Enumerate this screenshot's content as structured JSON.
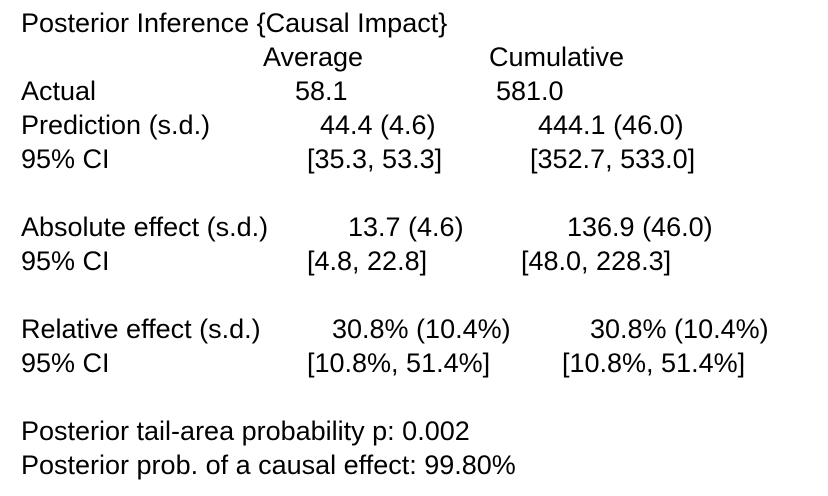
{
  "title": "Posterior Inference {Causal Impact}",
  "headers": {
    "average": "Average",
    "cumulative": "Cumulative"
  },
  "rows": {
    "actual": {
      "label": "Actual",
      "average": "58.1",
      "cumulative": "581.0"
    },
    "prediction": {
      "label": "Prediction (s.d.)",
      "average": "44.4 (4.6)",
      "cumulative": "444.1 (46.0)"
    },
    "prediction_ci": {
      "label": "95% CI",
      "average": "[35.3, 53.3]",
      "cumulative": "[352.7, 533.0]"
    },
    "absolute_effect": {
      "label": "Absolute effect (s.d.)",
      "average": "13.7 (4.6)",
      "cumulative": "136.9 (46.0)"
    },
    "absolute_ci": {
      "label": "95% CI",
      "average": "[4.8, 22.8]",
      "cumulative": "[48.0, 228.3]"
    },
    "relative_effect": {
      "label": "Relative effect (s.d.)",
      "average": "30.8% (10.4%)",
      "cumulative": "30.8% (10.4%)"
    },
    "relative_ci": {
      "label": "95% CI",
      "average": "[10.8%, 51.4%]",
      "cumulative": "[10.8%, 51.4%]"
    }
  },
  "footer": {
    "tail_probability": "Posterior tail-area probability p: 0.002",
    "causal_probability": "Posterior prob. of a causal effect: 99.80%"
  }
}
